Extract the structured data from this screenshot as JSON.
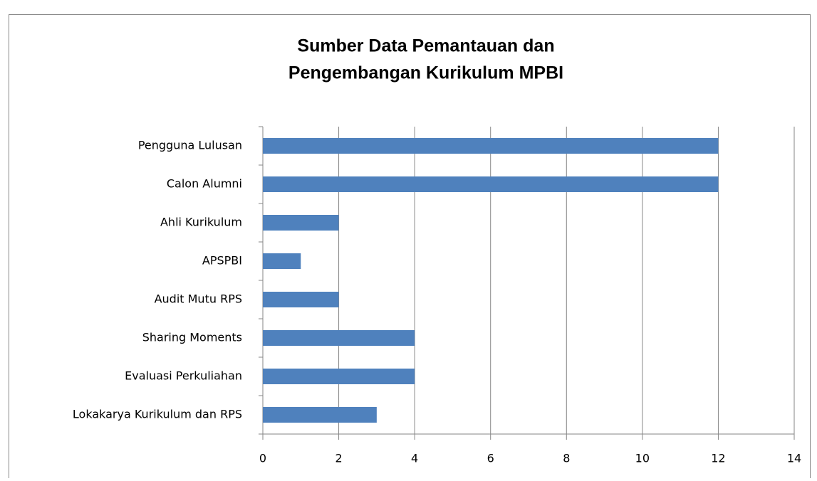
{
  "chart_data": {
    "type": "bar",
    "orientation": "horizontal",
    "title": [
      "Sumber Data Pemantauan dan",
      "Pengembangan Kurikulum MPBI"
    ],
    "categories": [
      "Pengguna Lulusan",
      "Calon Alumni",
      "Ahli Kurikulum",
      "APSPBI",
      "Audit Mutu RPS",
      "Sharing Moments",
      "Evaluasi Perkuliahan",
      "Lokakarya Kurikulum dan RPS"
    ],
    "values": [
      12,
      12,
      2,
      1,
      2,
      4,
      4,
      3
    ],
    "color": "#4f81bd",
    "xlim": [
      0,
      14
    ],
    "xticks": [
      0,
      2,
      4,
      6,
      8,
      10,
      12,
      14
    ],
    "grid": true
  }
}
